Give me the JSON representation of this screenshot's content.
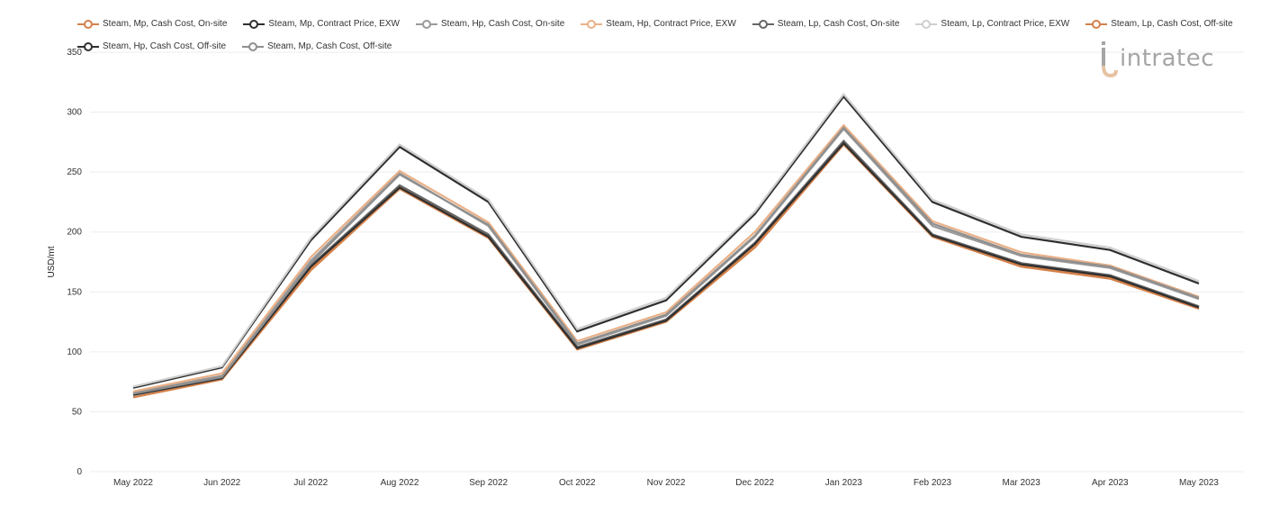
{
  "logo": {
    "text": "intratec"
  },
  "chart_data": {
    "type": "line",
    "ylabel": "USD/mt",
    "xlabel": "",
    "ylim": [
      0,
      350
    ],
    "yticks": [
      0,
      50,
      100,
      150,
      200,
      250,
      300,
      350
    ],
    "categories": [
      "May 2022",
      "Jun 2022",
      "Jul 2022",
      "Aug 2022",
      "Sep 2022",
      "Oct 2022",
      "Nov 2022",
      "Dec 2022",
      "Jan 2023",
      "Feb 2023",
      "Mar 2023",
      "Apr 2023",
      "May 2023"
    ],
    "grid": true,
    "legend_position": "top",
    "series": [
      {
        "name": "Steam, Mp, Cash Cost, On-site",
        "color": "#d4814a",
        "values": [
          64,
          79,
          170,
          238,
          197,
          103,
          126,
          189,
          275,
          197,
          172,
          162,
          137
        ]
      },
      {
        "name": "Steam, Mp, Contract Price, EXW",
        "color": "#2f2f2f",
        "values": [
          70,
          87,
          193,
          271,
          225,
          117,
          143,
          215,
          313,
          225,
          196,
          185,
          157
        ]
      },
      {
        "name": "Steam, Hp, Cash Cost, On-site",
        "color": "#9a9a9a",
        "values": [
          66,
          80,
          176,
          249,
          205,
          106,
          130,
          196,
          286,
          205,
          180,
          170,
          144
        ]
      },
      {
        "name": "Steam, Hp, Contract Price, EXW",
        "color": "#eab087",
        "values": [
          67,
          82,
          179,
          251,
          208,
          109,
          133,
          200,
          289,
          209,
          183,
          172,
          146
        ]
      },
      {
        "name": "Steam, Lp, Cash Cost, On-site",
        "color": "#666666",
        "values": [
          65,
          79,
          172,
          239,
          198,
          104,
          127,
          191,
          276,
          198,
          174,
          164,
          138
        ]
      },
      {
        "name": "Steam, Lp, Contract Price, EXW",
        "color": "#cfcfcf",
        "values": [
          71,
          88,
          195,
          273,
          227,
          119,
          145,
          217,
          315,
          227,
          198,
          187,
          159
        ]
      },
      {
        "name": "Steam, Lp, Cash Cost, Off-site",
        "color": "#d4814a",
        "values": [
          62,
          77,
          168,
          236,
          195,
          102,
          125,
          187,
          273,
          196,
          171,
          161,
          136
        ]
      },
      {
        "name": "Steam, Hp, Cash Cost, Off-site",
        "color": "#2f2f2f",
        "values": [
          64,
          78,
          171,
          237,
          196,
          103,
          126,
          190,
          274,
          197,
          173,
          163,
          137
        ]
      },
      {
        "name": "Steam, Mp, Cash Cost, Off-site",
        "color": "#8f8f8f",
        "values": [
          65,
          79,
          174,
          248,
          206,
          107,
          131,
          197,
          287,
          207,
          181,
          171,
          145
        ]
      }
    ]
  }
}
